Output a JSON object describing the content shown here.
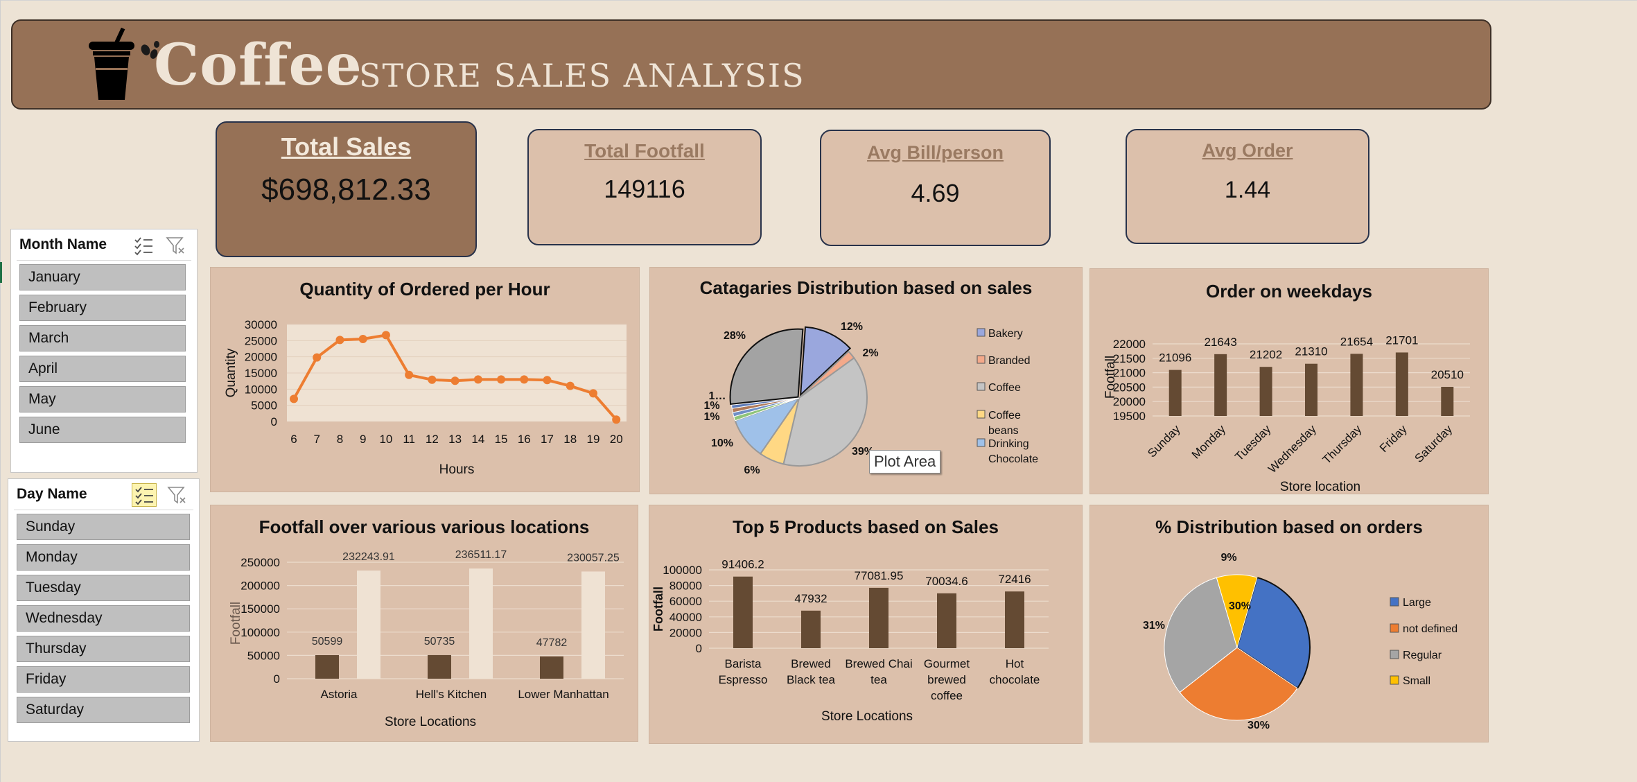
{
  "header": {
    "brand": "Coffee",
    "subtitle": "STORE SALES  ANALYSIS"
  },
  "kpis": [
    {
      "label": "Total Sales",
      "value": "$698,812.33"
    },
    {
      "label": "Total  Footfall",
      "value": "149116"
    },
    {
      "label": "Avg Bill/person",
      "value": "4.69"
    },
    {
      "label": "Avg Order",
      "value": "1.44"
    }
  ],
  "slicers": {
    "month": {
      "title": "Month Name",
      "items": [
        "January",
        "February",
        "March",
        "April",
        "May",
        "June"
      ]
    },
    "day": {
      "title": "Day Name",
      "items": [
        "Sunday",
        "Monday",
        "Tuesday",
        "Wednesday",
        "Thursday",
        "Friday",
        "Saturday"
      ]
    }
  },
  "tooltip": "Plot Area",
  "colors": {
    "bar": "#644a33",
    "bar_light": "#efe2d3",
    "line": "#ed7d31",
    "panel": "#dcc0ab",
    "header": "#967156"
  },
  "chart_data": [
    {
      "type": "line",
      "title": "Quantity of Ordered  per Hour",
      "xlabel": "Hours",
      "ylabel": "Quantity",
      "x": [
        "6",
        "7",
        "8",
        "9",
        "10",
        "11",
        "12",
        "13",
        "14",
        "15",
        "16",
        "17",
        "18",
        "19",
        "20"
      ],
      "values": [
        7000,
        19800,
        25200,
        25500,
        26700,
        14400,
        12900,
        12600,
        13000,
        13000,
        13000,
        12800,
        11000,
        8700,
        600
      ],
      "yticks": [
        "0",
        "5000",
        "10000",
        "15000",
        "20000",
        "25000",
        "30000"
      ],
      "ylim": [
        0,
        30000
      ]
    },
    {
      "type": "pie",
      "title": "Catagaries  Distribution based on sales",
      "legend": [
        "Bakery",
        "Branded",
        "Coffee",
        "Coffee beans",
        "Drinking Chocolate"
      ],
      "slices": [
        {
          "label": "12%",
          "value": 12,
          "color": "#9aa7dd"
        },
        {
          "label": "2%",
          "value": 2,
          "color": "#f4a98a"
        },
        {
          "label": "39%",
          "value": 39,
          "color": "#c4c4c4"
        },
        {
          "label": "6%",
          "value": 6,
          "color": "#ffd884"
        },
        {
          "label": "10%",
          "value": 10,
          "color": "#9fc1e9"
        },
        {
          "label": "1%",
          "value": 1,
          "color": "#8fc47a"
        },
        {
          "label": "1%",
          "value": 1,
          "color": "#6f8fc6"
        },
        {
          "label": "1…",
          "value": 1,
          "color": "#b07a5a"
        },
        {
          "label": "",
          "value": 0.8,
          "color": "#5f7dba"
        },
        {
          "label": "28%",
          "value": 28,
          "color": "#a3a3a3"
        }
      ]
    },
    {
      "type": "bar",
      "title": "Order on weekdays",
      "xlabel": "Store location",
      "ylabel": "Footfall",
      "categories": [
        "Sunday",
        "Monday",
        "Tuesday",
        "Wednesday",
        "Thursday",
        "Friday",
        "Saturday"
      ],
      "values": [
        21096,
        21643,
        21202,
        21310,
        21654,
        21701,
        20510
      ],
      "labels": [
        "21096",
        "21643",
        "21202",
        "21310",
        "21654",
        "21701",
        "20510"
      ],
      "yticks": [
        "19500",
        "20000",
        "20500",
        "21000",
        "21500",
        "22000"
      ],
      "ylim": [
        19500,
        22000
      ]
    },
    {
      "type": "bar",
      "title": "Footfall over various various locations",
      "xlabel": "Store Locations",
      "ylabel": "Footfall",
      "categories": [
        "Astoria",
        "Hell's Kitchen",
        "Lower Manhattan"
      ],
      "series": [
        {
          "values": [
            50599,
            50735,
            47782
          ],
          "labels": [
            "50599",
            "50735",
            "47782"
          ]
        },
        {
          "values": [
            232243.91,
            236511.17,
            230057.25
          ],
          "labels": [
            "232243.91",
            "236511.17",
            "230057.25"
          ]
        }
      ],
      "yticks": [
        "0",
        "50000",
        "100000",
        "150000",
        "200000",
        "250000"
      ],
      "ylim": [
        0,
        250000
      ]
    },
    {
      "type": "bar",
      "title": "Top 5 Products based on  Sales",
      "xlabel": "Store Locations",
      "ylabel": "Footfall",
      "categories": [
        [
          "Barista",
          "Espresso"
        ],
        [
          "Brewed",
          "Black tea"
        ],
        [
          "Brewed Chai",
          "tea"
        ],
        [
          "Gourmet",
          "brewed",
          "coffee"
        ],
        [
          "Hot",
          "chocolate"
        ]
      ],
      "values": [
        91406.2,
        47932,
        77081.95,
        70034.6,
        72416
      ],
      "labels": [
        "91406.2",
        "47932",
        "77081.95",
        "70034.6",
        "72416"
      ],
      "yticks": [
        "0",
        "20000",
        "40000",
        "60000",
        "80000",
        "100000"
      ],
      "ylim": [
        0,
        100000
      ]
    },
    {
      "type": "pie",
      "title": "% Distribution based on orders",
      "legend": [
        "Large",
        "not defined",
        "Regular",
        "Small"
      ],
      "slices": [
        {
          "label": "30%",
          "value": 30,
          "color": "#4472c4"
        },
        {
          "label": "30%",
          "value": 30,
          "color": "#ed7d31"
        },
        {
          "label": "31%",
          "value": 31,
          "color": "#a5a5a5"
        },
        {
          "label": "9%",
          "value": 9,
          "color": "#ffc000"
        }
      ]
    }
  ]
}
